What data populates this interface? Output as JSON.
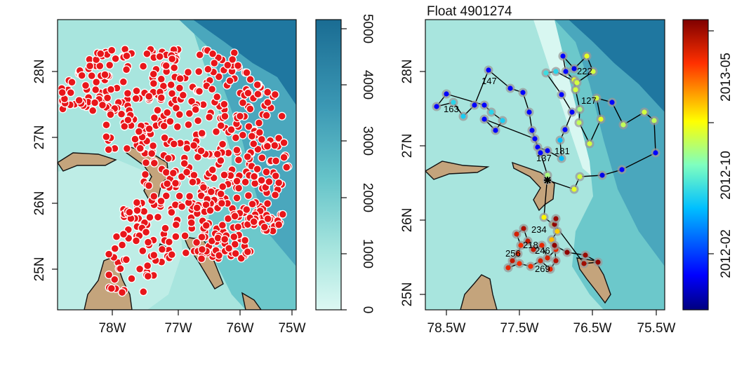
{
  "left_map": {
    "x_ticks": [
      "78W",
      "77W",
      "76W",
      "75W"
    ],
    "y_ticks": [
      "25N",
      "26N",
      "27N",
      "28N"
    ],
    "depth_legend": {
      "ticks": [
        "0",
        "1000",
        "2000",
        "3000",
        "4000",
        "5000"
      ],
      "color_low": "#d8f7f1",
      "color_high": "#1a6c93"
    },
    "land_color": "#c4a47c",
    "marker_color": "#e8161a",
    "marker_outline": "#ffffff"
  },
  "right_map": {
    "title": "Float 4901274",
    "x_ticks": [
      "78.5W",
      "77.5W",
      "76.5W",
      "75.5W"
    ],
    "y_ticks": [
      "25N",
      "26N",
      "27N",
      "28N"
    ],
    "date_legend": {
      "ticks": [
        "2012-02",
        "2012-10",
        "2013-05"
      ]
    },
    "cycle_labels": [
      "147",
      "163",
      "222",
      "127",
      "137",
      "181",
      "234",
      "218",
      "246",
      "256",
      "269"
    ]
  }
}
